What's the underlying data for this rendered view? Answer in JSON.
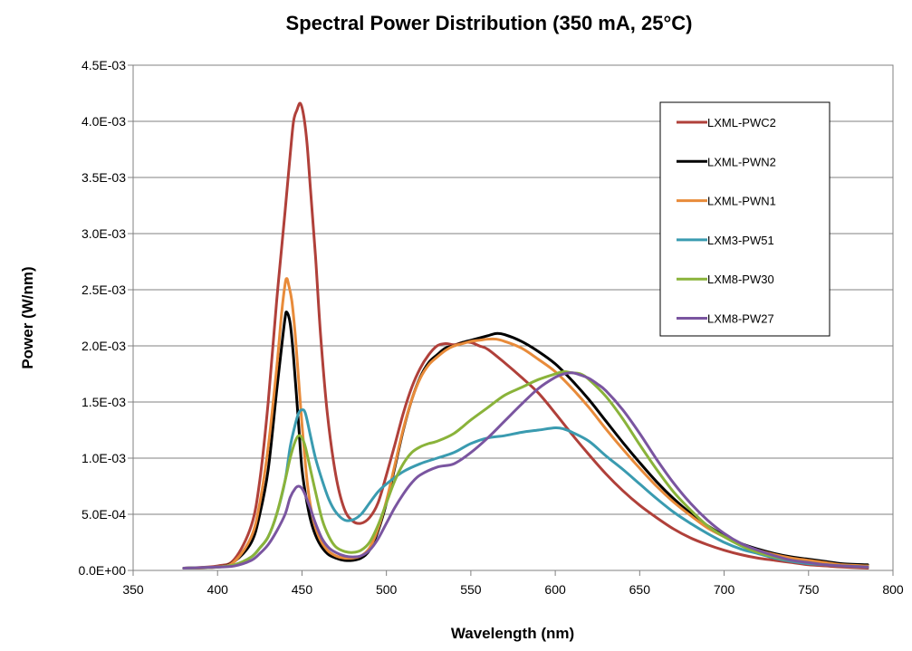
{
  "chart_data": {
    "type": "line",
    "title": "Spectral Power Distribution (350 mA, 25°C)",
    "xlabel": "Wavelength (nm)",
    "ylabel": "Power (W/nm)",
    "xlim": [
      350,
      800
    ],
    "ylim": [
      0,
      0.0045
    ],
    "xticks": [
      350,
      400,
      450,
      500,
      550,
      600,
      650,
      700,
      750,
      800
    ],
    "xtick_labels": [
      "350",
      "400",
      "450",
      "500",
      "550",
      "600",
      "650",
      "700",
      "750",
      "800"
    ],
    "yticks": [
      0,
      0.0005,
      0.001,
      0.0015,
      0.002,
      0.0025,
      0.003,
      0.0035,
      0.004,
      0.0045
    ],
    "ytick_labels": [
      "0.0E+00",
      "5.0E-04",
      "1.0E-03",
      "1.5E-03",
      "2.0E-03",
      "2.5E-03",
      "3.0E-03",
      "3.5E-03",
      "4.0E-03",
      "4.5E-03"
    ],
    "grid": "horizontal",
    "legend_position": "top-right",
    "series": [
      {
        "name": "LXML-PWC2",
        "color": "#b0403a",
        "x": [
          380,
          400,
          410,
          420,
          425,
          430,
          435,
          440,
          443,
          445,
          447,
          449,
          451,
          453,
          455,
          458,
          461,
          465,
          470,
          475,
          480,
          485,
          490,
          495,
          500,
          505,
          510,
          515,
          520,
          525,
          530,
          535,
          540,
          545,
          550,
          555,
          560,
          570,
          580,
          590,
          600,
          610,
          620,
          630,
          640,
          650,
          660,
          670,
          680,
          690,
          700,
          710,
          720,
          730,
          740,
          750,
          760,
          770,
          785
        ],
        "y": [
          2e-05,
          4e-05,
          0.0001,
          0.0004,
          0.0008,
          0.0015,
          0.0024,
          0.0032,
          0.0037,
          0.004,
          0.0041,
          0.00416,
          0.00405,
          0.0038,
          0.0034,
          0.0028,
          0.0021,
          0.0014,
          0.00085,
          0.00055,
          0.00044,
          0.00042,
          0.00047,
          0.0006,
          0.00085,
          0.00112,
          0.0014,
          0.00163,
          0.0018,
          0.00192,
          0.002,
          0.00202,
          0.00201,
          0.00203,
          0.00203,
          0.002,
          0.00197,
          0.00185,
          0.00172,
          0.00158,
          0.0014,
          0.00121,
          0.00103,
          0.00086,
          0.00071,
          0.00058,
          0.00047,
          0.00037,
          0.00029,
          0.00023,
          0.00018,
          0.00014,
          0.00011,
          9e-05,
          7e-05,
          5e-05,
          4e-05,
          3e-05,
          2e-05
        ]
      },
      {
        "name": "LXML-PWN2",
        "color": "#000000",
        "x": [
          380,
          400,
          410,
          420,
          425,
          430,
          435,
          438,
          440,
          441,
          443,
          445,
          448,
          450,
          453,
          456,
          460,
          465,
          470,
          475,
          480,
          485,
          490,
          495,
          500,
          505,
          510,
          515,
          520,
          525,
          530,
          535,
          540,
          545,
          550,
          555,
          560,
          565,
          570,
          580,
          590,
          600,
          610,
          620,
          630,
          640,
          650,
          660,
          670,
          680,
          690,
          700,
          710,
          720,
          730,
          740,
          750,
          760,
          770,
          785
        ],
        "y": [
          2e-05,
          3e-05,
          8e-05,
          0.00025,
          0.0005,
          0.0009,
          0.0016,
          0.002,
          0.00225,
          0.0023,
          0.0022,
          0.0019,
          0.0013,
          0.0009,
          0.0006,
          0.0004,
          0.00025,
          0.00015,
          0.00011,
          9e-05,
          9e-05,
          0.00011,
          0.00018,
          0.00035,
          0.0006,
          0.00092,
          0.00125,
          0.00152,
          0.00172,
          0.00185,
          0.00192,
          0.00198,
          0.002,
          0.00203,
          0.00205,
          0.00207,
          0.00209,
          0.00211,
          0.0021,
          0.00204,
          0.00195,
          0.00184,
          0.00169,
          0.00152,
          0.00133,
          0.00114,
          0.00096,
          0.00079,
          0.00064,
          0.00051,
          0.0004,
          0.00031,
          0.00024,
          0.00019,
          0.00015,
          0.00012,
          0.0001,
          8e-05,
          6e-05,
          5e-05
        ]
      },
      {
        "name": "LXML-PWN1",
        "color": "#e88b3a",
        "x": [
          380,
          400,
          410,
          420,
          425,
          430,
          435,
          438,
          440,
          441,
          442,
          444,
          446,
          448,
          450,
          453,
          456,
          460,
          465,
          470,
          475,
          480,
          485,
          490,
          495,
          500,
          505,
          510,
          515,
          520,
          525,
          530,
          535,
          540,
          545,
          550,
          555,
          560,
          565,
          570,
          580,
          590,
          600,
          610,
          620,
          630,
          640,
          650,
          660,
          670,
          680,
          690,
          700,
          710,
          720,
          730,
          740,
          750,
          760,
          770,
          785
        ],
        "y": [
          2e-05,
          3e-05,
          8e-05,
          0.0003,
          0.0006,
          0.0011,
          0.0018,
          0.0023,
          0.00255,
          0.0026,
          0.00255,
          0.0024,
          0.0021,
          0.0017,
          0.0013,
          0.0008,
          0.0005,
          0.0003,
          0.00018,
          0.00013,
          0.00011,
          0.00011,
          0.00013,
          0.0002,
          0.00037,
          0.00062,
          0.00094,
          0.00126,
          0.00152,
          0.00171,
          0.00183,
          0.0019,
          0.00196,
          0.002,
          0.00202,
          0.00204,
          0.00205,
          0.00206,
          0.00206,
          0.00204,
          0.00198,
          0.00188,
          0.00177,
          0.00162,
          0.00145,
          0.00126,
          0.00108,
          0.00091,
          0.00075,
          0.00061,
          0.00049,
          0.00038,
          0.0003,
          0.00023,
          0.00018,
          0.00014,
          0.00011,
          9e-05,
          7e-05,
          5e-05,
          4e-05
        ]
      },
      {
        "name": "LXM3-PW51",
        "color": "#3a9bb0",
        "x": [
          380,
          400,
          410,
          420,
          425,
          430,
          435,
          440,
          443,
          446,
          448,
          450,
          452,
          455,
          458,
          462,
          466,
          470,
          475,
          480,
          485,
          490,
          495,
          500,
          510,
          520,
          530,
          540,
          550,
          560,
          570,
          580,
          590,
          600,
          605,
          610,
          620,
          630,
          640,
          650,
          660,
          670,
          680,
          690,
          700,
          710,
          720,
          730,
          740,
          750,
          760,
          770,
          785
        ],
        "y": [
          2e-05,
          3e-05,
          5e-05,
          0.00012,
          0.0002,
          0.0003,
          0.0005,
          0.0008,
          0.0011,
          0.0013,
          0.0014,
          0.00143,
          0.0014,
          0.0012,
          0.001,
          0.0008,
          0.00063,
          0.00052,
          0.00045,
          0.00045,
          0.0005,
          0.0006,
          0.0007,
          0.00077,
          0.00088,
          0.00095,
          0.001,
          0.00105,
          0.00113,
          0.00118,
          0.0012,
          0.00123,
          0.00125,
          0.00127,
          0.00126,
          0.00123,
          0.00115,
          0.00102,
          0.0009,
          0.00077,
          0.00064,
          0.00052,
          0.00042,
          0.00033,
          0.00025,
          0.00019,
          0.00015,
          0.00011,
          8e-05,
          6e-05,
          5e-05,
          4e-05,
          3e-05
        ]
      },
      {
        "name": "LXM8-PW30",
        "color": "#8ab33a",
        "x": [
          380,
          400,
          410,
          420,
          425,
          430,
          435,
          440,
          443,
          446,
          448,
          450,
          452,
          455,
          458,
          462,
          466,
          470,
          475,
          480,
          485,
          490,
          495,
          500,
          505,
          510,
          515,
          520,
          525,
          530,
          540,
          550,
          560,
          570,
          580,
          590,
          600,
          605,
          610,
          615,
          620,
          630,
          640,
          650,
          660,
          670,
          680,
          690,
          700,
          710,
          720,
          730,
          740,
          750,
          760,
          770,
          785
        ],
        "y": [
          2e-05,
          3e-05,
          5e-05,
          0.00012,
          0.0002,
          0.0003,
          0.0005,
          0.0008,
          0.001,
          0.00115,
          0.0012,
          0.00118,
          0.0011,
          0.0009,
          0.0007,
          0.00045,
          0.0003,
          0.00021,
          0.00017,
          0.00016,
          0.00018,
          0.00025,
          0.0004,
          0.0006,
          0.0008,
          0.00095,
          0.00105,
          0.0011,
          0.00113,
          0.00115,
          0.00122,
          0.00134,
          0.00145,
          0.00156,
          0.00163,
          0.0017,
          0.00175,
          0.00177,
          0.00176,
          0.00175,
          0.0017,
          0.00155,
          0.00135,
          0.00112,
          0.0009,
          0.0007,
          0.00054,
          0.0004,
          0.0003,
          0.00022,
          0.00016,
          0.00012,
          9e-05,
          7e-05,
          5e-05,
          4e-05,
          3e-05
        ]
      },
      {
        "name": "LXM8-PW27",
        "color": "#7a55a0",
        "x": [
          380,
          400,
          410,
          420,
          425,
          430,
          435,
          440,
          443,
          446,
          448,
          450,
          452,
          455,
          458,
          462,
          466,
          470,
          475,
          480,
          485,
          490,
          495,
          500,
          505,
          510,
          515,
          520,
          530,
          540,
          550,
          560,
          570,
          580,
          590,
          600,
          605,
          610,
          615,
          620,
          625,
          630,
          640,
          650,
          660,
          670,
          680,
          690,
          700,
          710,
          720,
          730,
          740,
          750,
          760,
          770,
          785
        ],
        "y": [
          2e-05,
          3e-05,
          4e-05,
          9e-05,
          0.00015,
          0.00023,
          0.00035,
          0.0005,
          0.00065,
          0.00073,
          0.00075,
          0.00073,
          0.00067,
          0.00055,
          0.00042,
          0.00028,
          0.0002,
          0.00016,
          0.00013,
          0.00012,
          0.00013,
          0.00018,
          0.00028,
          0.00042,
          0.00056,
          0.00068,
          0.00078,
          0.00085,
          0.00092,
          0.00095,
          0.00105,
          0.00118,
          0.00133,
          0.00148,
          0.00162,
          0.00172,
          0.00175,
          0.00176,
          0.00174,
          0.00171,
          0.00166,
          0.0016,
          0.00143,
          0.00122,
          0.00099,
          0.00078,
          0.0006,
          0.00045,
          0.00033,
          0.00024,
          0.00018,
          0.00013,
          9e-05,
          7e-05,
          5e-05,
          4e-05,
          3e-05
        ]
      }
    ]
  }
}
